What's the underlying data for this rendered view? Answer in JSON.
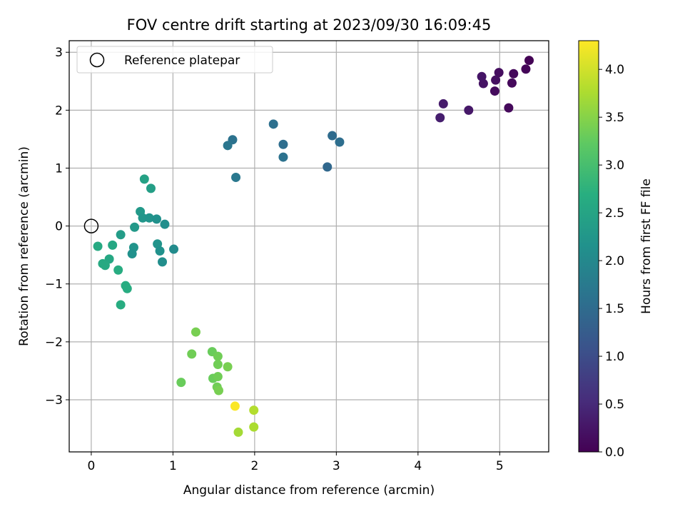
{
  "chart_data": {
    "type": "scatter",
    "title": "FOV centre drift starting at 2023/09/30 16:09:45",
    "xlabel": "Angular distance from reference (arcmin)",
    "ylabel": "Rotation from reference (arcmin)",
    "xlim": [
      -0.27,
      5.6
    ],
    "ylim": [
      -3.9,
      3.2
    ],
    "xticks": [
      0,
      1,
      2,
      3,
      4,
      5
    ],
    "xtick_labels": [
      "0",
      "1",
      "2",
      "3",
      "4",
      "5"
    ],
    "yticks": [
      -3,
      -2,
      -1,
      0,
      1,
      2,
      3
    ],
    "ytick_labels": [
      "−3",
      "−2",
      "−1",
      "0",
      "1",
      "2",
      "3"
    ],
    "grid": true,
    "legend": {
      "position": "top-left",
      "entries": [
        "Reference platepar"
      ]
    },
    "reference_point": {
      "x": 0,
      "y": 0,
      "label": "Reference platepar",
      "marker": "open-circle"
    },
    "colorbar": {
      "label": "Hours from first FF file",
      "range": [
        0.0,
        4.3
      ],
      "ticks": [
        0.0,
        0.5,
        1.0,
        1.5,
        2.0,
        2.5,
        3.0,
        3.5,
        4.0
      ],
      "tick_labels": [
        "0.0",
        "0.5",
        "1.0",
        "1.5",
        "2.0",
        "2.5",
        "3.0",
        "3.5",
        "4.0"
      ],
      "colormap": "viridis"
    },
    "points": [
      {
        "x": 5.36,
        "y": 2.86,
        "c": 0.02
      },
      {
        "x": 5.32,
        "y": 2.71,
        "c": 0.05
      },
      {
        "x": 5.17,
        "y": 2.63,
        "c": 0.08
      },
      {
        "x": 5.15,
        "y": 2.47,
        "c": 0.1
      },
      {
        "x": 5.11,
        "y": 2.04,
        "c": 0.1
      },
      {
        "x": 4.99,
        "y": 2.65,
        "c": 0.15
      },
      {
        "x": 4.95,
        "y": 2.52,
        "c": 0.18
      },
      {
        "x": 4.94,
        "y": 2.33,
        "c": 0.12
      },
      {
        "x": 4.8,
        "y": 2.46,
        "c": 0.22
      },
      {
        "x": 4.78,
        "y": 2.58,
        "c": 0.25
      },
      {
        "x": 4.62,
        "y": 2.0,
        "c": 0.28
      },
      {
        "x": 4.31,
        "y": 2.11,
        "c": 0.32
      },
      {
        "x": 4.27,
        "y": 1.87,
        "c": 0.36
      },
      {
        "x": 3.04,
        "y": 1.45,
        "c": 1.55
      },
      {
        "x": 2.95,
        "y": 1.56,
        "c": 1.5
      },
      {
        "x": 2.89,
        "y": 1.02,
        "c": 1.45
      },
      {
        "x": 2.35,
        "y": 1.41,
        "c": 1.55
      },
      {
        "x": 2.35,
        "y": 1.19,
        "c": 1.62
      },
      {
        "x": 2.23,
        "y": 1.76,
        "c": 1.58
      },
      {
        "x": 1.73,
        "y": 1.49,
        "c": 1.62
      },
      {
        "x": 1.67,
        "y": 1.39,
        "c": 1.68
      },
      {
        "x": 1.77,
        "y": 0.84,
        "c": 1.72
      },
      {
        "x": 0.65,
        "y": 0.81,
        "c": 2.45
      },
      {
        "x": 0.73,
        "y": 0.65,
        "c": 2.4
      },
      {
        "x": 0.6,
        "y": 0.25,
        "c": 2.3
      },
      {
        "x": 0.63,
        "y": 0.14,
        "c": 2.25
      },
      {
        "x": 0.71,
        "y": 0.14,
        "c": 2.2
      },
      {
        "x": 0.8,
        "y": 0.12,
        "c": 2.15
      },
      {
        "x": 0.9,
        "y": 0.03,
        "c": 2.1
      },
      {
        "x": 0.53,
        "y": -0.02,
        "c": 2.3
      },
      {
        "x": 0.36,
        "y": -0.15,
        "c": 2.35
      },
      {
        "x": 0.81,
        "y": -0.31,
        "c": 2.2
      },
      {
        "x": 0.52,
        "y": -0.37,
        "c": 2.2
      },
      {
        "x": 0.84,
        "y": -0.43,
        "c": 2.15
      },
      {
        "x": 1.01,
        "y": -0.4,
        "c": 2.05
      },
      {
        "x": 0.5,
        "y": -0.48,
        "c": 2.15
      },
      {
        "x": 0.87,
        "y": -0.62,
        "c": 2.1
      },
      {
        "x": 0.08,
        "y": -0.35,
        "c": 2.6
      },
      {
        "x": 0.26,
        "y": -0.33,
        "c": 2.55
      },
      {
        "x": 0.22,
        "y": -0.57,
        "c": 2.55
      },
      {
        "x": 0.14,
        "y": -0.65,
        "c": 2.6
      },
      {
        "x": 0.17,
        "y": -0.68,
        "c": 2.6
      },
      {
        "x": 0.33,
        "y": -0.76,
        "c": 2.65
      },
      {
        "x": 0.42,
        "y": -1.03,
        "c": 2.65
      },
      {
        "x": 0.44,
        "y": -1.08,
        "c": 2.65
      },
      {
        "x": 0.36,
        "y": -1.36,
        "c": 2.65
      },
      {
        "x": 1.28,
        "y": -1.83,
        "c": 3.4
      },
      {
        "x": 1.23,
        "y": -2.21,
        "c": 3.35
      },
      {
        "x": 1.48,
        "y": -2.17,
        "c": 3.3
      },
      {
        "x": 1.55,
        "y": -2.25,
        "c": 3.35
      },
      {
        "x": 1.55,
        "y": -2.39,
        "c": 3.35
      },
      {
        "x": 1.67,
        "y": -2.43,
        "c": 3.4
      },
      {
        "x": 1.49,
        "y": -2.63,
        "c": 3.3
      },
      {
        "x": 1.55,
        "y": -2.6,
        "c": 3.35
      },
      {
        "x": 1.1,
        "y": -2.7,
        "c": 3.3
      },
      {
        "x": 1.54,
        "y": -2.78,
        "c": 3.35
      },
      {
        "x": 1.56,
        "y": -2.84,
        "c": 3.4
      },
      {
        "x": 1.76,
        "y": -3.11,
        "c": 4.28
      },
      {
        "x": 1.99,
        "y": -3.18,
        "c": 3.8
      },
      {
        "x": 1.99,
        "y": -3.47,
        "c": 3.75
      },
      {
        "x": 1.8,
        "y": -3.56,
        "c": 3.7
      }
    ]
  }
}
